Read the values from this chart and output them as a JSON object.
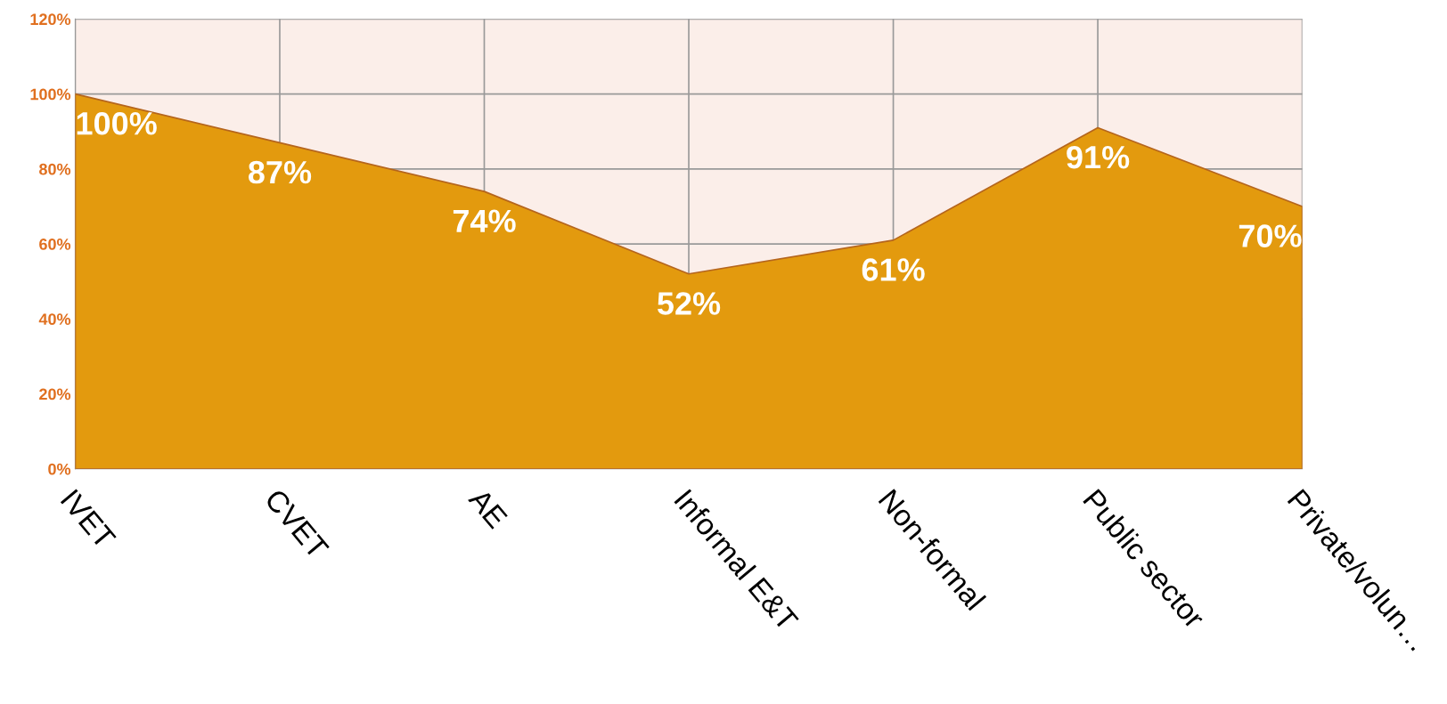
{
  "chart_data": {
    "type": "area",
    "categories": [
      "IVET",
      "CVET",
      "AE",
      "Informal E&T",
      "Non-formal",
      "Public sector",
      "Private/volun…"
    ],
    "values": [
      100,
      87,
      74,
      52,
      61,
      91,
      70
    ],
    "value_labels": [
      "100%",
      "87%",
      "74%",
      "52%",
      "61%",
      "91%",
      "70%"
    ],
    "color": "#e39a0e",
    "ylim": [
      0,
      120
    ],
    "yticks": [
      {
        "value": 0,
        "label": "0%"
      },
      {
        "value": 20,
        "label": "20%"
      },
      {
        "value": 40,
        "label": "40%"
      },
      {
        "value": 60,
        "label": "60%"
      },
      {
        "value": 80,
        "label": "80%"
      },
      {
        "value": 100,
        "label": "100%"
      },
      {
        "value": 120,
        "label": "120%"
      }
    ],
    "grid": true,
    "legend": false
  }
}
